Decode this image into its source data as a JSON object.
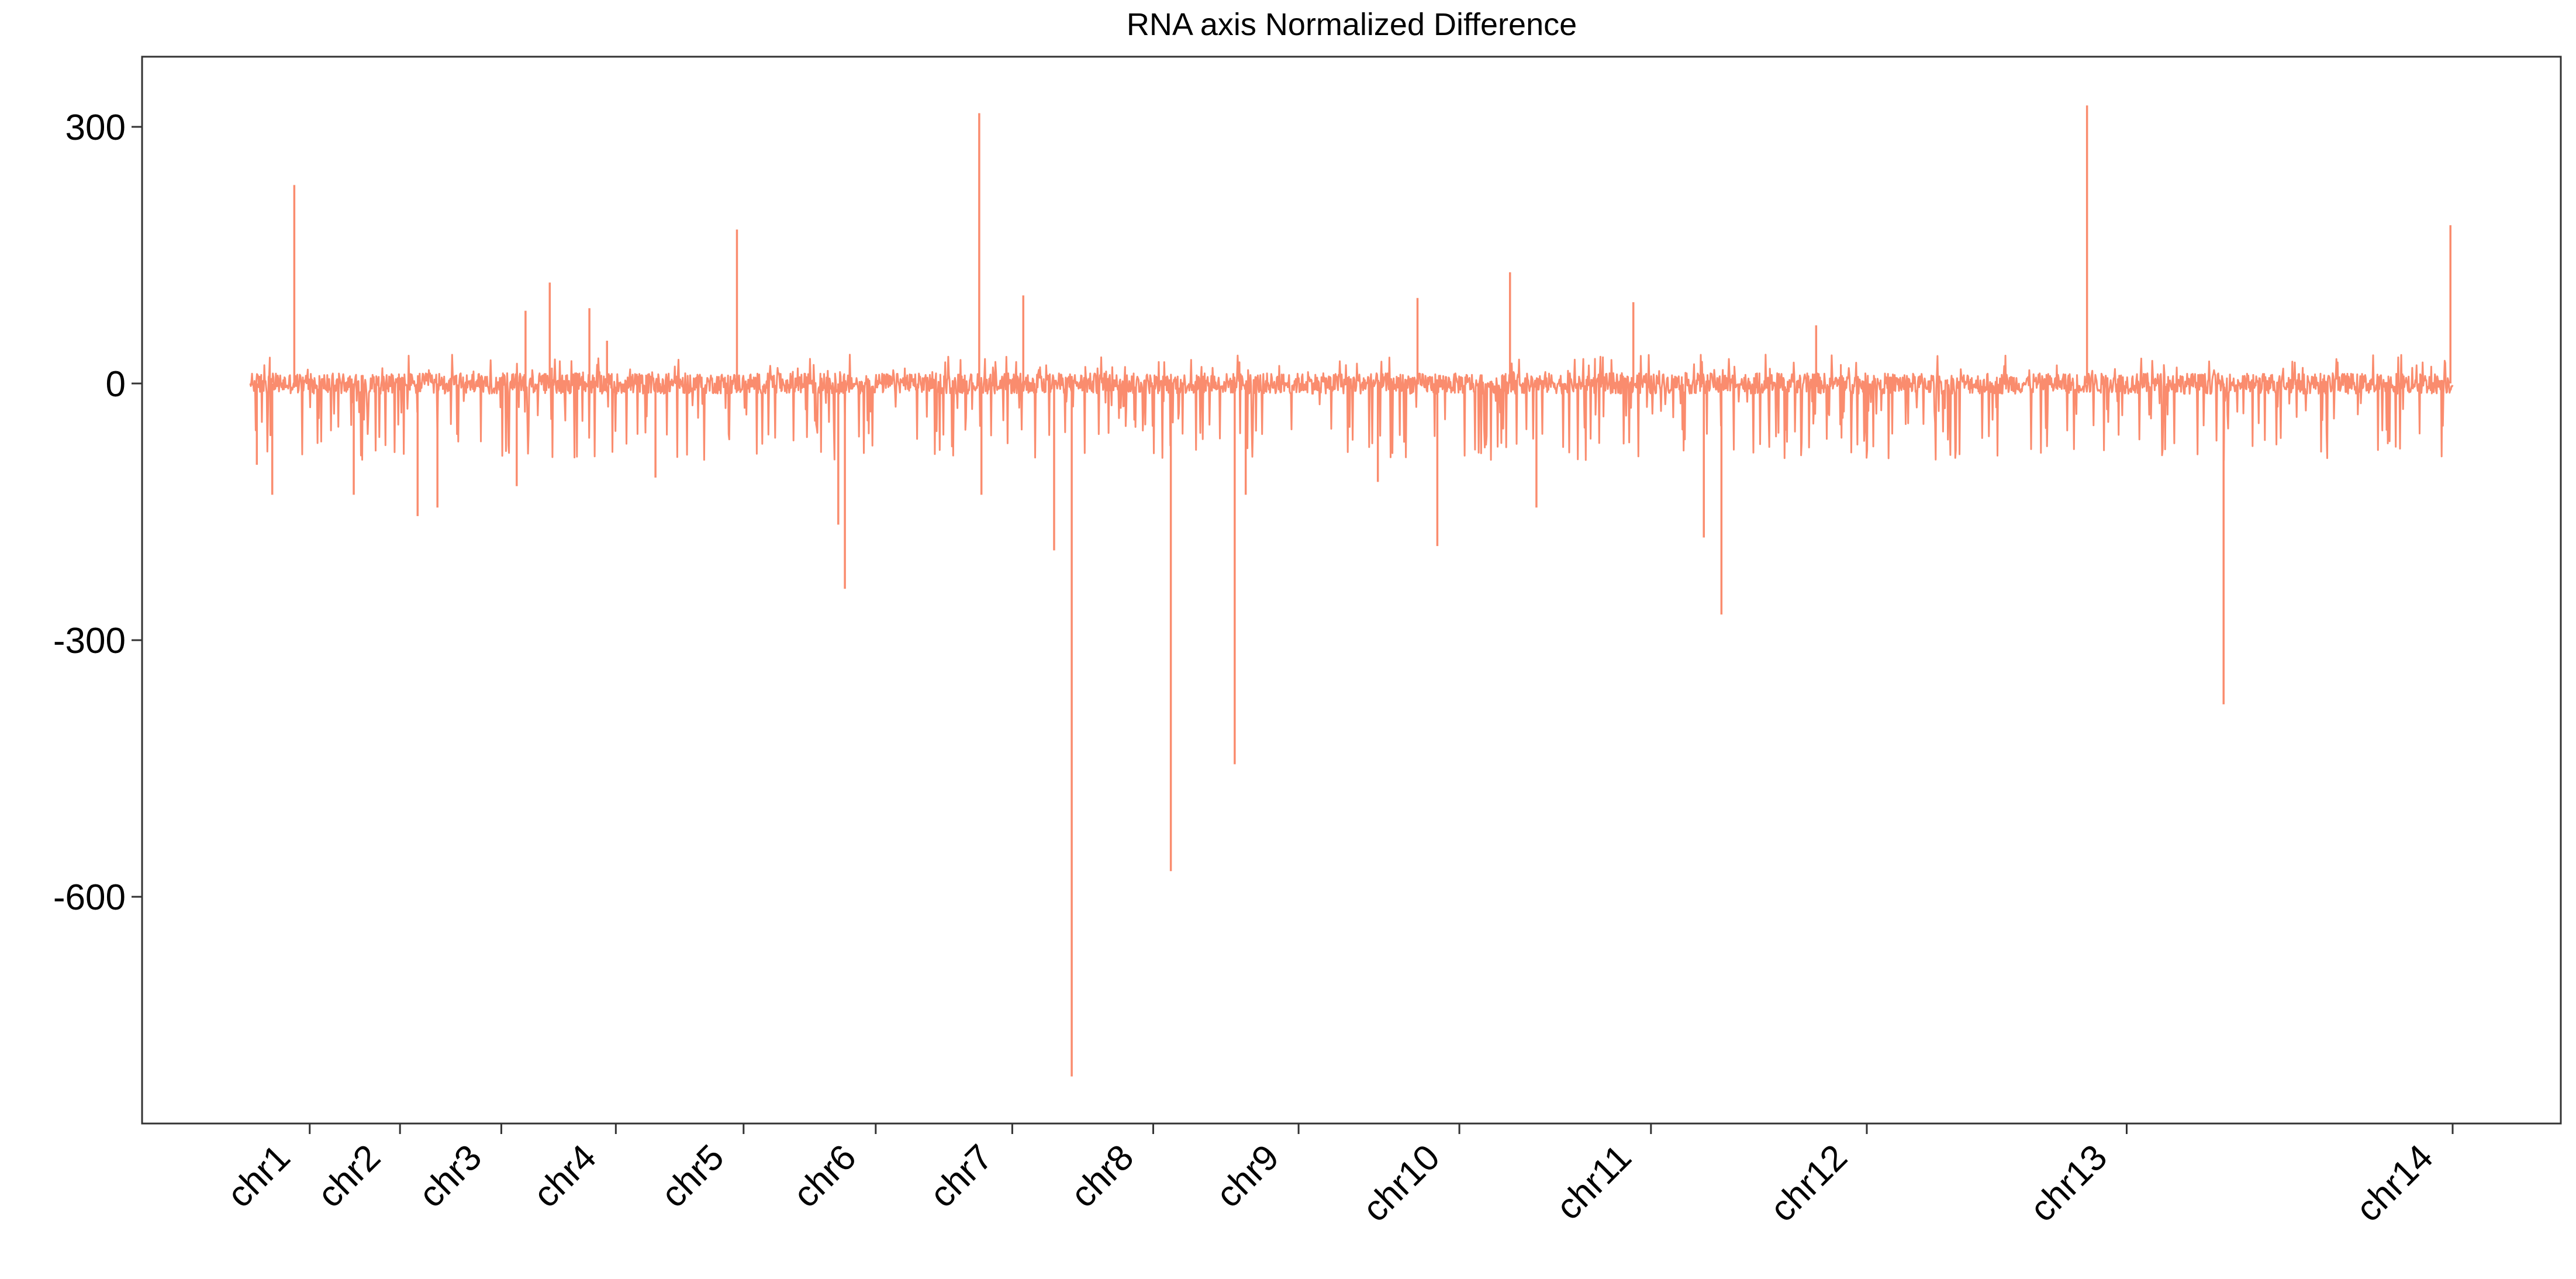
{
  "chart_data": {
    "type": "line",
    "title": "RNA axis Normalized Difference",
    "xlabel": "",
    "ylabel": "",
    "ylim": [
      -865,
      382
    ],
    "yticks": [
      300,
      0,
      -300,
      -600
    ],
    "grid": false,
    "legend": "none",
    "series_color": "#FA8C6E",
    "x_range": [
      0,
      100
    ],
    "chromosomes": [
      {
        "label": "chr1",
        "boundary": 2.7
      },
      {
        "label": "chr2",
        "boundary": 6.8
      },
      {
        "label": "chr3",
        "boundary": 11.4
      },
      {
        "label": "chr4",
        "boundary": 16.6
      },
      {
        "label": "chr5",
        "boundary": 22.4
      },
      {
        "label": "chr6",
        "boundary": 28.4
      },
      {
        "label": "chr7",
        "boundary": 34.6
      },
      {
        "label": "chr8",
        "boundary": 41.0
      },
      {
        "label": "chr9",
        "boundary": 47.6
      },
      {
        "label": "chr10",
        "boundary": 54.9
      },
      {
        "label": "chr11",
        "boundary": 63.6
      },
      {
        "label": "chr12",
        "boundary": 73.4
      },
      {
        "label": "chr13",
        "boundary": 85.2
      },
      {
        "label": "chr14",
        "boundary": 100.0
      }
    ],
    "peaks": [
      {
        "x": 0.3,
        "y": -95
      },
      {
        "x": 1.0,
        "y": -130
      },
      {
        "x": 2.0,
        "y": 232
      },
      {
        "x": 4.7,
        "y": -130
      },
      {
        "x": 7.6,
        "y": -155
      },
      {
        "x": 8.5,
        "y": -145
      },
      {
        "x": 12.1,
        "y": -120
      },
      {
        "x": 12.5,
        "y": 85
      },
      {
        "x": 13.6,
        "y": 118
      },
      {
        "x": 15.4,
        "y": 88
      },
      {
        "x": 16.2,
        "y": 50
      },
      {
        "x": 18.4,
        "y": -110
      },
      {
        "x": 22.1,
        "y": 180
      },
      {
        "x": 26.7,
        "y": -165
      },
      {
        "x": 27.0,
        "y": -240
      },
      {
        "x": 33.1,
        "y": 316
      },
      {
        "x": 33.2,
        "y": -130
      },
      {
        "x": 35.1,
        "y": 103
      },
      {
        "x": 36.5,
        "y": -195
      },
      {
        "x": 37.3,
        "y": -810
      },
      {
        "x": 41.8,
        "y": -570
      },
      {
        "x": 44.7,
        "y": -445
      },
      {
        "x": 45.2,
        "y": -130
      },
      {
        "x": 51.2,
        "y": -115
      },
      {
        "x": 53.0,
        "y": 100
      },
      {
        "x": 53.9,
        "y": -190
      },
      {
        "x": 57.2,
        "y": 130
      },
      {
        "x": 58.4,
        "y": -145
      },
      {
        "x": 62.8,
        "y": 95
      },
      {
        "x": 66.0,
        "y": -180
      },
      {
        "x": 66.8,
        "y": -270
      },
      {
        "x": 71.1,
        "y": 68
      },
      {
        "x": 83.4,
        "y": 325
      },
      {
        "x": 89.6,
        "y": -375
      },
      {
        "x": 99.9,
        "y": 185
      }
    ]
  }
}
